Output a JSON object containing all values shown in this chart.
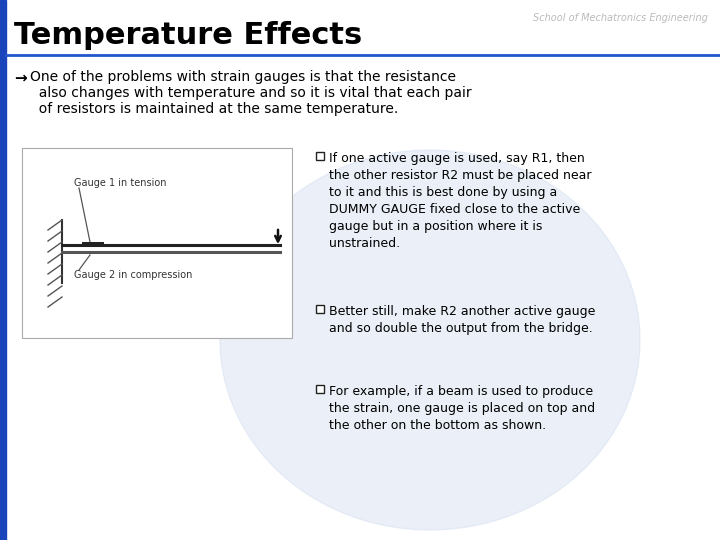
{
  "title": "Temperature Effects",
  "subtitle": "School of Mechatronics Engineering",
  "intro_arrow": "→",
  "intro_text": " One of the problems with strain gauges is that the resistance\n   also changes with temperature and so it is vital that each pair\n   of resistors is maintained at the same temperature.",
  "bullet1": "If one active gauge is used, say R1, then\nthe other resistor R2 must be placed near\nto it and this is best done by using a\nDUMMY GAUGE fixed close to the active\ngauge but in a position where it is\nunstrained.",
  "bullet2": "Better still, make R2 another active gauge\nand so double the output from the bridge.",
  "bullet3": "For example, if a beam is used to produce\nthe strain, one gauge is placed on top and\nthe other on the bottom as shown.",
  "gauge1_label": "Gauge 1 in tension",
  "gauge2_label": "Gauge 2 in compression",
  "title_fontsize": 22,
  "subtitle_fontsize": 7,
  "body_fontsize": 9,
  "intro_fontsize": 10,
  "diagram_label_fontsize": 7,
  "bg_color": "#ffffff",
  "title_color": "#000000",
  "body_color": "#000000",
  "subtitle_color": "#bbbbbb",
  "blue_line_color": "#2255cc",
  "blue_bg_color": "#ccd9ee",
  "left_bar_color": "#1a44bb",
  "hatch_color": "#555555",
  "beam_color": "#444444",
  "diagram_border": "#aaaaaa"
}
